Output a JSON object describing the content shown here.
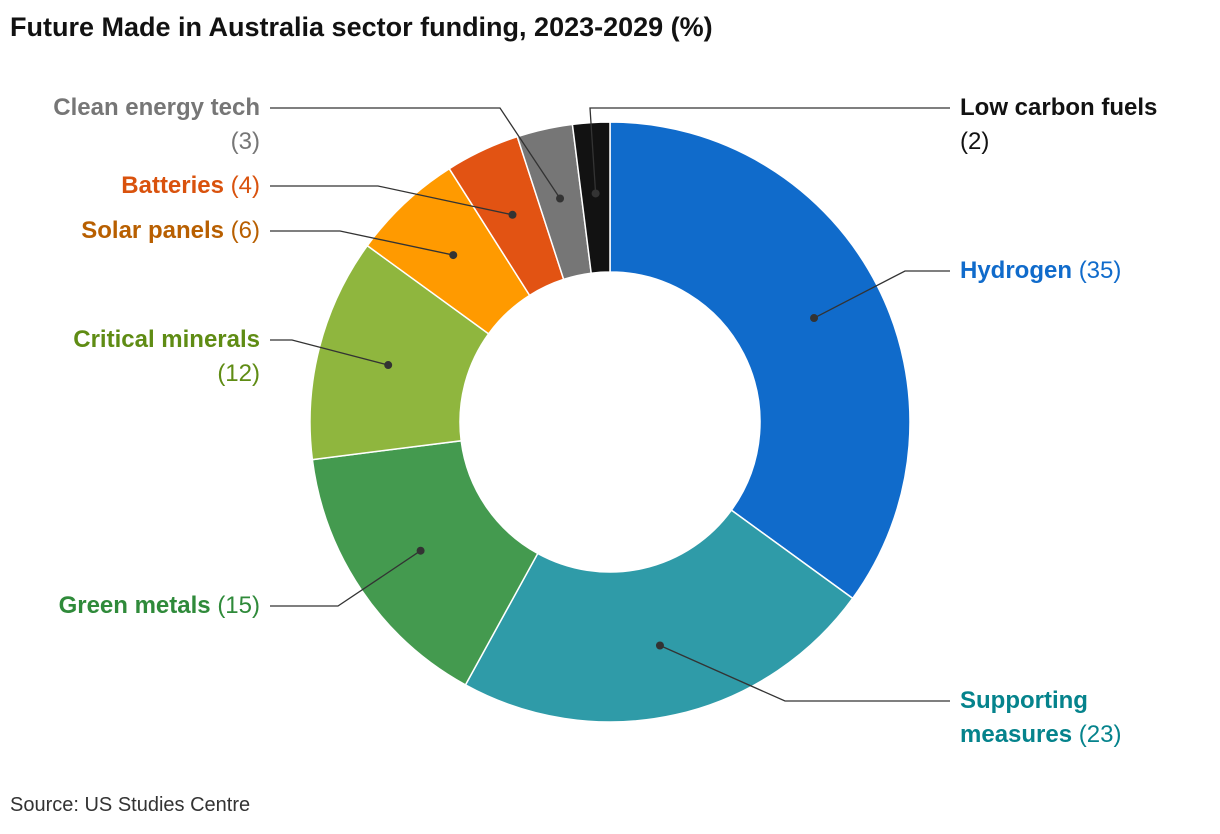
{
  "title": "Future Made in Australia sector funding, 2023-2029 (%)",
  "source": "Source: US Studies Centre",
  "chart_data": {
    "type": "pie",
    "variant": "donut",
    "title": "Future Made in Australia sector funding, 2023-2029 (%)",
    "categories": [
      "Hydrogen",
      "Supporting measures",
      "Green metals",
      "Critical minerals",
      "Solar panels",
      "Batteries",
      "Clean energy tech",
      "Low carbon fuels"
    ],
    "values": [
      35,
      23,
      15,
      12,
      6,
      4,
      3,
      2
    ],
    "value_labels": [
      "(35)",
      "(23)",
      "(15)",
      "(12)",
      "(6)",
      "(4)",
      "(3)",
      "(2)"
    ],
    "colors": [
      "#106bcb",
      "#2f9ba8",
      "#449a4f",
      "#8fb63e",
      "#ff9a00",
      "#e25313",
      "#767676",
      "#121212"
    ],
    "label_colors": [
      "#106bcb",
      "#05838c",
      "#2f8a3a",
      "#5f8c14",
      "#b85f00",
      "#d9520d",
      "#767676",
      "#121212"
    ],
    "legend": "direct labels",
    "grid": false
  }
}
